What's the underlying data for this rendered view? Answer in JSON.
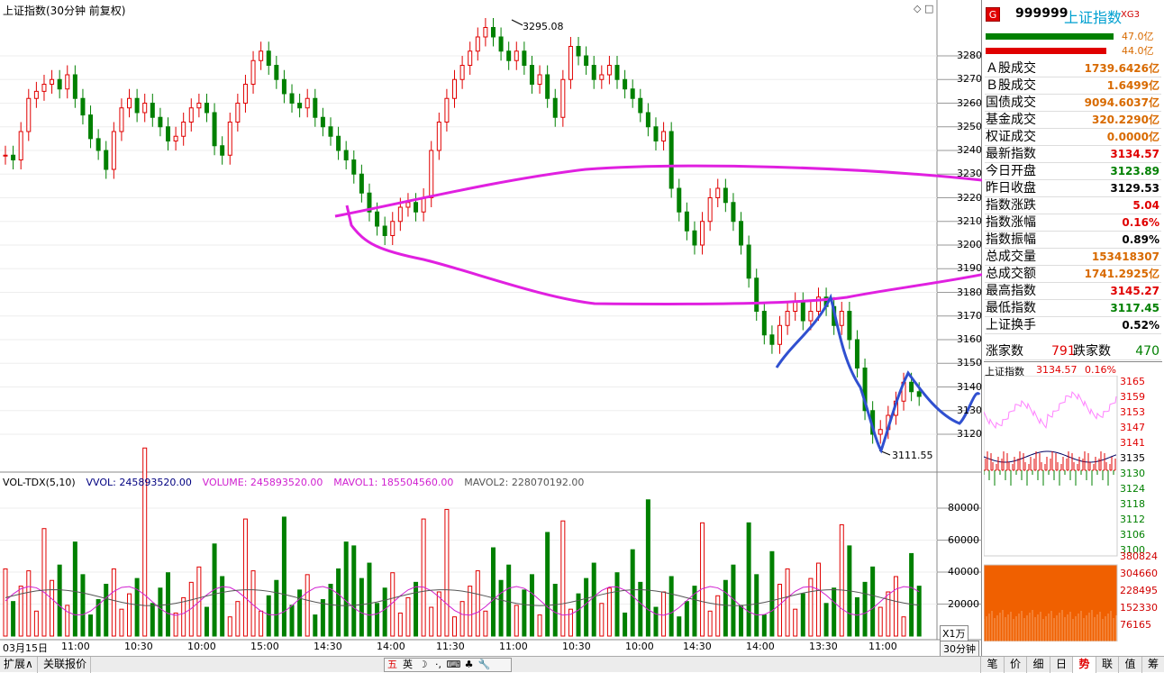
{
  "main_chart": {
    "title": "上证指数(30分钟 前复权)",
    "y_ticks": [
      "3280",
      "3270",
      "3260",
      "3250",
      "3240",
      "3230",
      "3220",
      "3210",
      "3200",
      "3190",
      "3180",
      "3170",
      "3160",
      "3150",
      "3140",
      "3130",
      "3120"
    ],
    "high_label": "3295.08",
    "low_label": "3111.55",
    "x_ticks": [
      "03月15日",
      "11:00",
      "10:30",
      "10:00",
      "15:00",
      "14:30",
      "14:00",
      "11:30",
      "11:00",
      "10:30",
      "10:00",
      "14:30",
      "14:00",
      "13:30",
      "11:00"
    ],
    "period_label": "30分钟",
    "corner_icons": "◇ □"
  },
  "volume_panel": {
    "indicator": "VOL-TDX(5,10)",
    "vvol_label": "VVOL: 245893520.00",
    "volume_label": "VOLUME: 245893520.00",
    "mavol1_label": "MAVOL1: 185504560.00",
    "mavol2_label": "MAVOL2: 228070192.00",
    "y_ticks": [
      "80000",
      "60000",
      "40000",
      "20000"
    ],
    "unit_label": "X1万"
  },
  "right_panel": {
    "badge": "G",
    "code": "999999",
    "name": "上证指数",
    "suffix": "XG3",
    "bar1_value": "47.0亿",
    "bar2_value": "44.0亿",
    "rows": [
      {
        "label": "Ａ股成交",
        "value": "1739.6426亿"
      },
      {
        "label": "Ｂ股成交",
        "value": "1.6499亿"
      },
      {
        "label": "国债成交",
        "value": "9094.6037亿"
      },
      {
        "label": "基金成交",
        "value": "320.2290亿"
      },
      {
        "label": "权证成交",
        "value": "0.0000亿"
      },
      {
        "label": "最新指数",
        "value": "3134.57"
      },
      {
        "label": "今日开盘",
        "value": "3123.89"
      },
      {
        "label": "昨日收盘",
        "value": "3129.53"
      },
      {
        "label": "指数涨跌",
        "value": "5.04"
      },
      {
        "label": "指数涨幅",
        "value": "0.16%"
      },
      {
        "label": "指数振幅",
        "value": "0.89%"
      },
      {
        "label": "总成交量",
        "value": "153418307"
      },
      {
        "label": "总成交额",
        "value": "1741.2925亿"
      },
      {
        "label": "最高指数",
        "value": "3145.27"
      },
      {
        "label": "最低指数",
        "value": "3117.45"
      },
      {
        "label": "上证换手",
        "value": "0.52%"
      }
    ],
    "up_label": "涨家数",
    "up_count": "791",
    "down_label": "跌家数",
    "down_count": "470",
    "mini_title": "上证指数",
    "mini_price": "3134.57",
    "mini_pct": "0.16%",
    "mini_price_ticks": [
      "3165",
      "3159",
      "3153",
      "3147",
      "3141",
      "3135",
      "3130",
      "3124",
      "3118",
      "3112",
      "3106",
      "3100"
    ],
    "mini_vol_ticks": [
      "380824",
      "304660",
      "228495",
      "152330",
      "76165"
    ]
  },
  "bottom_bar": {
    "expand_label": "扩展∧",
    "related_label": "关联报价",
    "ime_items": [
      "五",
      "英",
      "☽",
      "·,",
      "⌨",
      "♣",
      "🔧"
    ],
    "tabs": [
      "笔",
      "价",
      "细",
      "日",
      "势",
      "联",
      "值",
      "筹"
    ]
  },
  "colors": {
    "up": "#e00000",
    "down": "#008000",
    "annotation_magenta": "#e020e0",
    "annotation_blue": "#3050d0"
  }
}
